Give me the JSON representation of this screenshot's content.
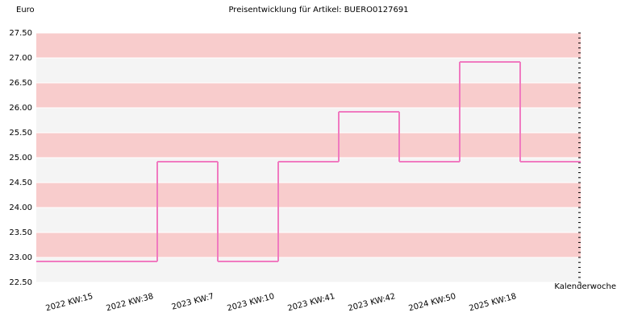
{
  "chart_data": {
    "type": "step",
    "title": "Preisentwicklung für Artikel: BUERO0127691",
    "y_label": "Euro",
    "x_label": "Kalenderwoche",
    "categories": [
      "2022 KW:15",
      "2022 KW:38",
      "2023 KW:7",
      "2023 KW:10",
      "2023 KW:41",
      "2023 KW:42",
      "2024 KW:50",
      "2025 KW:18"
    ],
    "values": [
      22.92,
      24.92,
      22.92,
      24.92,
      25.92,
      24.92,
      26.92,
      24.92
    ],
    "color": "#f07ac0",
    "band_colors": [
      "#f4f4f4",
      "#f8cccc"
    ],
    "ylim": [
      22.5,
      27.5
    ],
    "yticks": [
      {
        "value": 22.5,
        "label": "22.50"
      },
      {
        "value": 23,
        "label": "23.00"
      },
      {
        "value": 23.5,
        "label": "23.50"
      },
      {
        "value": 24,
        "label": "24.00"
      },
      {
        "value": 24.5,
        "label": "24.50"
      },
      {
        "value": 25,
        "label": "25.00"
      },
      {
        "value": 25.5,
        "label": "25.50"
      },
      {
        "value": 26,
        "label": "26.00"
      },
      {
        "value": 26.5,
        "label": "26.50"
      },
      {
        "value": 27,
        "label": "27.00"
      },
      {
        "value": 27.5,
        "label": "27.50"
      }
    ]
  }
}
